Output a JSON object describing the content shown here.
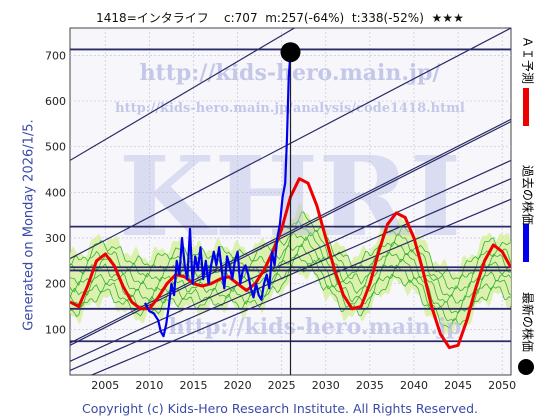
{
  "header": {
    "code_name": "1418=インタライフ",
    "current": "c:707",
    "median": "m:257(-64%)",
    "target": "t:338(-52%)",
    "stars": "★★★"
  },
  "generated_label": "Generated on Monday 2026/1/5.",
  "copyright": "Copyright (c) Kids-Hero Research Institute. All Rights Reserved.",
  "watermarks": {
    "url1": "http://kids-hero.main.jp/",
    "url2": "http://kids-hero.main.jp/analysis/code1418.html",
    "big": "KHRI",
    "bottom": "http://kids-hero.main.jp"
  },
  "legend": {
    "ai_forecast": "ＡＩ予測",
    "past_price": "過去の株価",
    "latest_price": "最新の株価"
  },
  "colors": {
    "ai_forecast": "#ee0000",
    "past_price": "#0000ee",
    "latest_price": "#000000",
    "band_fill": "#d8f0a0",
    "band_line": "#22aa22",
    "channel": "#2a2a66"
  },
  "chart_data": {
    "type": "line",
    "title": "",
    "xlabel": "",
    "ylabel": "",
    "xlim": [
      2001,
      2051
    ],
    "ylim": [
      0,
      760
    ],
    "x_ticks": [
      2005,
      2010,
      2015,
      2020,
      2025,
      2030,
      2035,
      2040,
      2045,
      2050
    ],
    "y_ticks": [
      100,
      200,
      300,
      400,
      500,
      600,
      700
    ],
    "grid": true,
    "latest_point": {
      "x": 2026.0,
      "y": 707
    },
    "horizontal_levels": [
      713,
      325,
      236,
      229,
      145,
      74
    ],
    "channel_lines": [
      {
        "x0": 2001,
        "y0": 470,
        "x1": 2051,
        "y1": 1040
      },
      {
        "x0": 2001,
        "y0": 255,
        "x1": 2051,
        "y1": 760
      },
      {
        "x0": 2001,
        "y0": 70,
        "x1": 2051,
        "y1": 560
      },
      {
        "x0": 2001,
        "y0": 65,
        "x1": 2051,
        "y1": 555
      },
      {
        "x0": 2001,
        "y0": 30,
        "x1": 2051,
        "y1": 470
      },
      {
        "x0": 2001,
        "y0": 10,
        "x1": 2051,
        "y1": 430
      },
      {
        "x0": 2001,
        "y0": -20,
        "x1": 2051,
        "y1": 385
      }
    ],
    "series": [
      {
        "name": "過去の株価",
        "points": [
          [
            2009.5,
            158
          ],
          [
            2010,
            140
          ],
          [
            2010.5,
            135
          ],
          [
            2011,
            120
          ],
          [
            2011.3,
            95
          ],
          [
            2011.6,
            85
          ],
          [
            2011.9,
            110
          ],
          [
            2012.2,
            150
          ],
          [
            2012.5,
            200
          ],
          [
            2012.8,
            175
          ],
          [
            2013.1,
            250
          ],
          [
            2013.4,
            220
          ],
          [
            2013.7,
            300
          ],
          [
            2014,
            240
          ],
          [
            2014.3,
            210
          ],
          [
            2014.6,
            320
          ],
          [
            2014.9,
            200
          ],
          [
            2015.2,
            260
          ],
          [
            2015.5,
            230
          ],
          [
            2015.8,
            280
          ],
          [
            2016.1,
            210
          ],
          [
            2016.4,
            250
          ],
          [
            2016.7,
            200
          ],
          [
            2017,
            240
          ],
          [
            2017.3,
            270
          ],
          [
            2017.6,
            240
          ],
          [
            2017.9,
            280
          ],
          [
            2018.2,
            230
          ],
          [
            2018.5,
            190
          ],
          [
            2018.8,
            260
          ],
          [
            2019.1,
            240
          ],
          [
            2019.4,
            210
          ],
          [
            2019.7,
            250
          ],
          [
            2020,
            270
          ],
          [
            2020.3,
            200
          ],
          [
            2020.6,
            230
          ],
          [
            2020.9,
            240
          ],
          [
            2021.2,
            220
          ],
          [
            2021.5,
            190
          ],
          [
            2021.8,
            170
          ],
          [
            2022.1,
            200
          ],
          [
            2022.4,
            175
          ],
          [
            2022.7,
            165
          ],
          [
            2023,
            200
          ],
          [
            2023.3,
            220
          ],
          [
            2023.6,
            190
          ],
          [
            2023.9,
            270
          ],
          [
            2024.2,
            240
          ],
          [
            2024.5,
            300
          ],
          [
            2024.8,
            330
          ],
          [
            2025.1,
            390
          ],
          [
            2025.4,
            420
          ],
          [
            2025.6,
            520
          ],
          [
            2025.8,
            650
          ],
          [
            2026.0,
            707
          ]
        ]
      },
      {
        "name": "ＡＩ予測",
        "points": [
          [
            2001,
            160
          ],
          [
            2002,
            150
          ],
          [
            2003,
            195
          ],
          [
            2004,
            250
          ],
          [
            2005,
            265
          ],
          [
            2006,
            240
          ],
          [
            2007,
            195
          ],
          [
            2008,
            160
          ],
          [
            2009,
            145
          ],
          [
            2010,
            145
          ],
          [
            2011,
            170
          ],
          [
            2012,
            200
          ],
          [
            2013,
            220
          ],
          [
            2014,
            215
          ],
          [
            2015,
            200
          ],
          [
            2016,
            195
          ],
          [
            2017,
            200
          ],
          [
            2018,
            210
          ],
          [
            2019,
            215
          ],
          [
            2020,
            200
          ],
          [
            2021,
            185
          ],
          [
            2022,
            200
          ],
          [
            2023,
            230
          ],
          [
            2024,
            270
          ],
          [
            2025,
            320
          ],
          [
            2026,
            390
          ],
          [
            2027,
            430
          ],
          [
            2028,
            420
          ],
          [
            2029,
            370
          ],
          [
            2030,
            300
          ],
          [
            2031,
            230
          ],
          [
            2032,
            175
          ],
          [
            2033,
            145
          ],
          [
            2034,
            150
          ],
          [
            2035,
            200
          ],
          [
            2036,
            270
          ],
          [
            2037,
            330
          ],
          [
            2038,
            355
          ],
          [
            2039,
            345
          ],
          [
            2040,
            300
          ],
          [
            2041,
            230
          ],
          [
            2042,
            150
          ],
          [
            2043,
            90
          ],
          [
            2044,
            60
          ],
          [
            2045,
            65
          ],
          [
            2046,
            120
          ],
          [
            2047,
            190
          ],
          [
            2048,
            250
          ],
          [
            2049,
            285
          ],
          [
            2050,
            270
          ],
          [
            2051,
            235
          ]
        ]
      }
    ]
  }
}
